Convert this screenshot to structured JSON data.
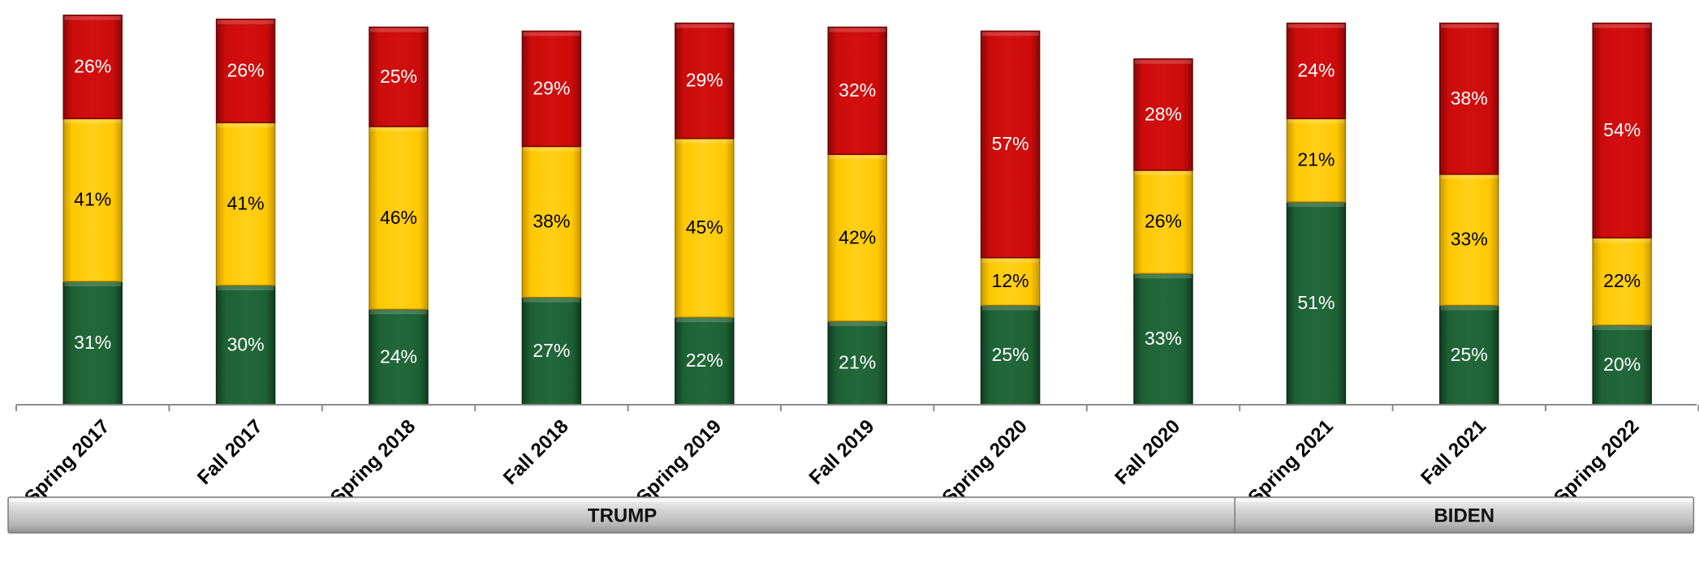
{
  "chart_data": {
    "type": "bar",
    "stacked": true,
    "categories": [
      "Spring 2017",
      "Fall 2017",
      "Spring 2018",
      "Fall 2018",
      "Spring 2019",
      "Fall 2019",
      "Spring 2020",
      "Fall 2020",
      "Spring 2021",
      "Fall 2021",
      "Spring 2022"
    ],
    "series": [
      {
        "color": "#1e5e32",
        "values": [
          31,
          30,
          24,
          27,
          22,
          21,
          25,
          33,
          51,
          25,
          20
        ],
        "labels": [
          "31%",
          "30%",
          "24%",
          "27%",
          "22%",
          "21%",
          "25%",
          "33%",
          "51%",
          "25%",
          "20%"
        ]
      },
      {
        "color": "#ffc800",
        "values": [
          41,
          41,
          46,
          38,
          45,
          42,
          12,
          26,
          21,
          33,
          22
        ],
        "labels": [
          "41%",
          "41%",
          "46%",
          "38%",
          "45%",
          "42%",
          "12%",
          "26%",
          "21%",
          "33%",
          "22%"
        ]
      },
      {
        "color": "#cc0b0b",
        "values": [
          26,
          26,
          25,
          29,
          29,
          32,
          57,
          28,
          24,
          38,
          54
        ],
        "labels": [
          "26%",
          "26%",
          "25%",
          "29%",
          "29%",
          "32%",
          "57%",
          "28%",
          "24%",
          "38%",
          "54%"
        ]
      }
    ],
    "groups": [
      {
        "label": "TRUMP",
        "categories": [
          "Spring 2017",
          "Fall 2017",
          "Spring 2018",
          "Fall 2018",
          "Spring 2019",
          "Fall 2019",
          "Spring 2020",
          "Fall 2020"
        ]
      },
      {
        "label": "BIDEN",
        "categories": [
          "Spring 2021",
          "Fall 2021",
          "Spring 2022"
        ]
      }
    ],
    "ylim": [
      0,
      100
    ],
    "grid": false,
    "legend": "none",
    "title": "",
    "xlabel": "",
    "ylabel": ""
  }
}
